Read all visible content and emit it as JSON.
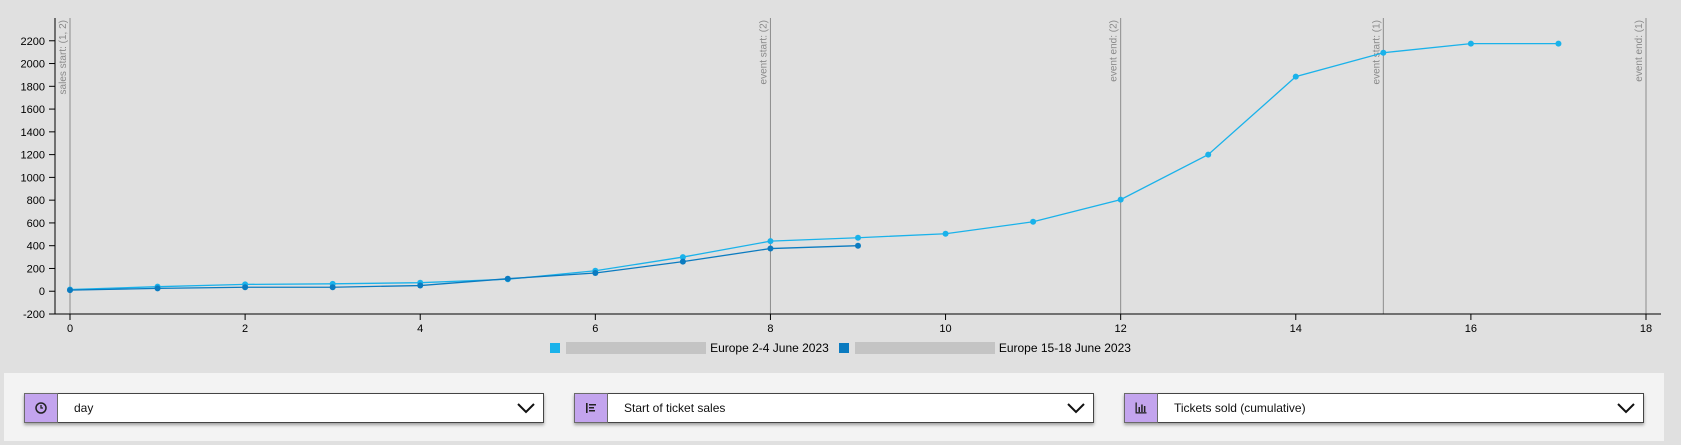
{
  "chart_data": {
    "type": "line",
    "xlabel": "",
    "ylabel": "",
    "xlim": [
      0,
      18
    ],
    "ylim": [
      -200,
      2400
    ],
    "xticks": [
      0,
      2,
      4,
      6,
      8,
      10,
      12,
      14,
      16,
      18
    ],
    "yticks": [
      -200,
      0,
      200,
      400,
      600,
      800,
      1000,
      1200,
      1400,
      1600,
      1800,
      2000,
      2200
    ],
    "grid": false,
    "legend_position": "bottom-center",
    "series": [
      {
        "name": "Europe 2-4 June 2023",
        "color": "#1ab2ea",
        "x": [
          0,
          1,
          2,
          3,
          4,
          5,
          6,
          7,
          8,
          9,
          10,
          11,
          12,
          13,
          14,
          15,
          16,
          17
        ],
        "y": [
          15,
          40,
          60,
          65,
          75,
          105,
          180,
          300,
          440,
          470,
          505,
          610,
          805,
          1200,
          1885,
          2095,
          2175,
          2175
        ]
      },
      {
        "name": "Europe 15-18 June 2023",
        "color": "#0b7bc0",
        "x": [
          0,
          1,
          2,
          3,
          4,
          5,
          6,
          7,
          8,
          9
        ],
        "y": [
          10,
          25,
          35,
          35,
          50,
          110,
          160,
          260,
          375,
          400
        ]
      }
    ],
    "event_lines": [
      {
        "x": 0,
        "label": "sales start: (1, 2)"
      },
      {
        "x": 8,
        "label": "event start: (2)"
      },
      {
        "x": 12,
        "label": "event end: (2)"
      },
      {
        "x": 15,
        "label": "event start: (1)"
      },
      {
        "x": 18,
        "label": "event end: (1)"
      }
    ]
  },
  "legend": {
    "items": [
      {
        "label": "Europe 2-4 June 2023",
        "color": "#1ab2ea"
      },
      {
        "label": "Europe 15-18 June 2023",
        "color": "#0b7bc0"
      }
    ]
  },
  "controls": {
    "interval": {
      "value": "day",
      "icon": "clock-icon"
    },
    "alignment": {
      "value": "Start of ticket sales",
      "icon": "align-left-icon"
    },
    "metric": {
      "value": "Tickets sold (cumulative)",
      "icon": "bar-chart-icon"
    }
  },
  "colors": {
    "control_accent": "#c3a4ee"
  }
}
